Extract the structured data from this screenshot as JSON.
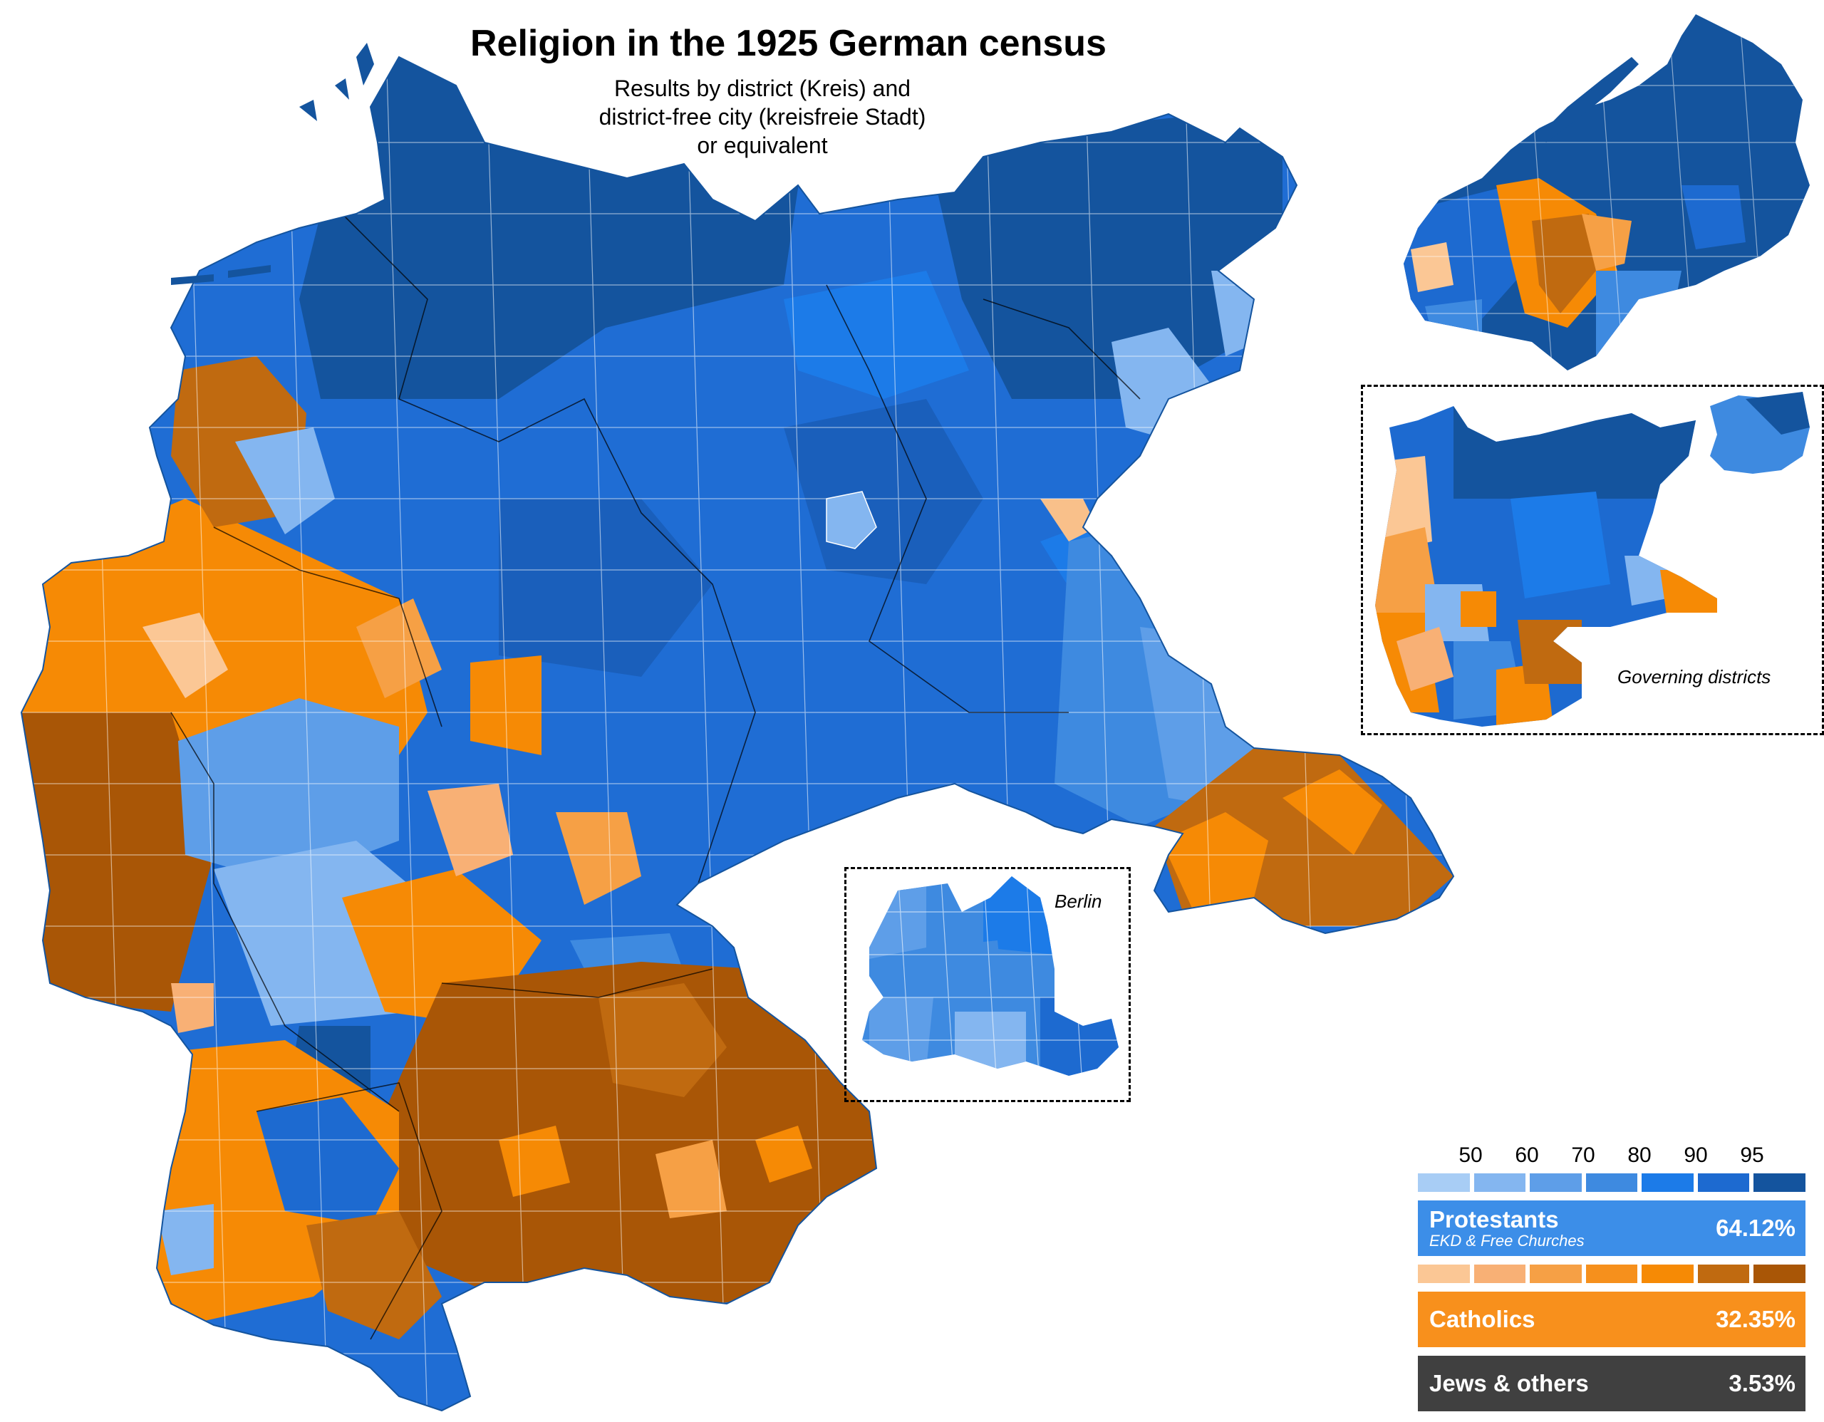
{
  "title": "Religion in the 1925 German census",
  "subtitle_lines": [
    "Results by district (Kreis) and",
    "district-free city (kreisfreie Stadt)",
    "or equivalent"
  ],
  "insets": {
    "berlin_label": "Berlin",
    "governing_label": "Governing districts"
  },
  "colors": {
    "protestant_scale": [
      "#a8cdf5",
      "#84b6f0",
      "#5e9ee8",
      "#3e8ae0",
      "#1c7be8",
      "#1d6ad0",
      "#14549e"
    ],
    "catholic_scale": [
      "#fbc795",
      "#f8b075",
      "#f6a045",
      "#f6901c",
      "#f68a05",
      "#c06a10",
      "#a95606"
    ],
    "protestant_bar": "#3c8ee8",
    "catholic_bar": "#f8901c",
    "other_bar": "#404040"
  },
  "legend": {
    "scale_ticks": [
      "50",
      "60",
      "70",
      "80",
      "90",
      "95"
    ],
    "protestants": {
      "label": "Protestants",
      "sublabel": "EKD & Free Churches",
      "percent": "64.12%"
    },
    "catholics": {
      "label": "Catholics",
      "percent": "32.35%"
    },
    "others": {
      "label": "Jews & others",
      "percent": "3.53%"
    }
  }
}
